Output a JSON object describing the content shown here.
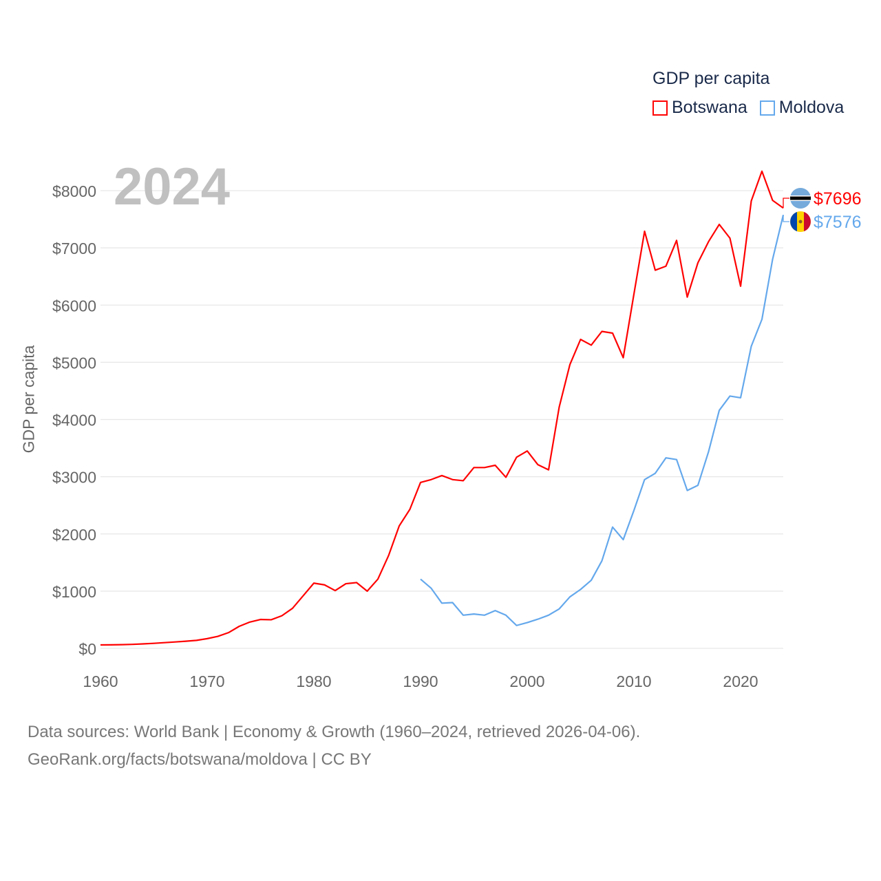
{
  "chart_data": {
    "type": "line",
    "title": "GDP per capita",
    "xlabel": "",
    "ylabel": "GDP per capita",
    "year_label": "2024",
    "xlim": [
      1960,
      2024
    ],
    "ylim": [
      0,
      8000
    ],
    "x_ticks": [
      "1960",
      "1970",
      "1980",
      "1990",
      "2000",
      "2010",
      "2020"
    ],
    "y_ticks": [
      "$0",
      "$1000",
      "$2000",
      "$3000",
      "$4000",
      "$5000",
      "$6000",
      "$7000",
      "$8000"
    ],
    "grid": true,
    "legend_placement": "top-right",
    "series": [
      {
        "name": "Botswana",
        "color": "#ff0000",
        "end_label": "$7696",
        "start_year": 1960,
        "values": [
          60,
          62,
          65,
          70,
          78,
          88,
          100,
          112,
          125,
          140,
          170,
          210,
          275,
          385,
          460,
          505,
          500,
          570,
          700,
          920,
          1140,
          1110,
          1010,
          1130,
          1150,
          1000,
          1210,
          1620,
          2140,
          2430,
          2900,
          2950,
          3020,
          2950,
          2930,
          3160,
          3160,
          3200,
          2990,
          3340,
          3450,
          3210,
          3120,
          4220,
          4960,
          5400,
          5300,
          5540,
          5510,
          5080,
          6190,
          7290,
          6610,
          6680,
          7130,
          6140,
          6740,
          7110,
          7410,
          7170,
          6330,
          7820,
          8340,
          7830,
          7696
        ]
      },
      {
        "name": "Moldova",
        "color": "#64a8ec",
        "end_label": "$7576",
        "start_year": 1990,
        "values": [
          1210,
          1050,
          790,
          800,
          580,
          600,
          580,
          660,
          580,
          400,
          450,
          510,
          580,
          690,
          900,
          1030,
          1190,
          1530,
          2120,
          1900,
          2410,
          2950,
          3060,
          3330,
          3300,
          2760,
          2850,
          3440,
          4160,
          4410,
          4380,
          5280,
          5750,
          6800,
          7576
        ]
      }
    ]
  },
  "source": {
    "line1": "Data sources: World Bank | Economy & Growth (1960–2024, retrieved 2026-04-06).",
    "line2": "GeoRank.org/facts/botswana/moldova | CC BY"
  }
}
